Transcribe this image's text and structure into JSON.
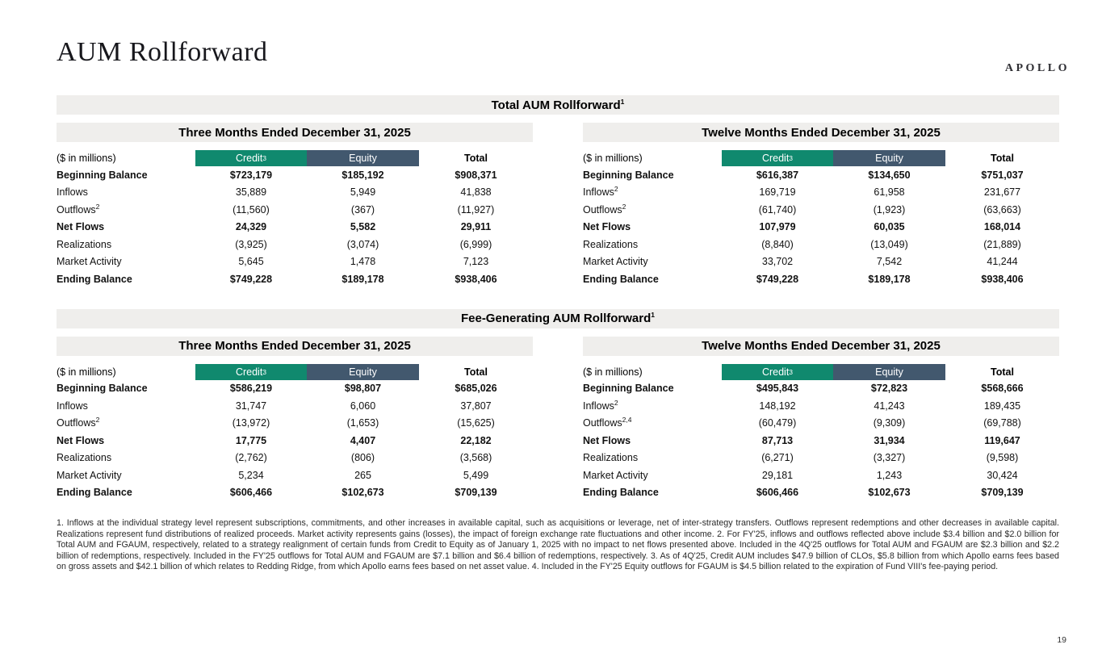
{
  "brand": {
    "logo": "APOLLO"
  },
  "page": {
    "title": "AUM Rollforward",
    "number": "19"
  },
  "colors": {
    "credit_bg": "#10896E",
    "equity_bg": "#42586E",
    "bar_bg": "#EFEEEC",
    "header_text": "#FFFFFF"
  },
  "sections": [
    {
      "title": "Total AUM Rollforward",
      "title_sup": "1",
      "tables": [
        {
          "period": "Three Months Ended December 31, 2025",
          "unit_label": "($ in millions)",
          "columns": [
            {
              "label": "Credit",
              "sup": "3",
              "style": "credit"
            },
            {
              "label": "Equity",
              "sup": "",
              "style": "equity"
            },
            {
              "label": "Total",
              "sup": "",
              "style": "total"
            }
          ],
          "rows": [
            {
              "label": "Beginning Balance",
              "sup": "",
              "bold": true,
              "values": [
                "$723,179",
                "$185,192",
                "$908,371"
              ]
            },
            {
              "label": "Inflows",
              "sup": "",
              "bold": false,
              "values": [
                "35,889",
                "5,949",
                "41,838"
              ]
            },
            {
              "label": "Outflows",
              "sup": "2",
              "bold": false,
              "values": [
                "(11,560)",
                "(367)",
                "(11,927)"
              ]
            },
            {
              "label": "Net Flows",
              "sup": "",
              "bold": true,
              "values": [
                "24,329",
                "5,582",
                "29,911"
              ]
            },
            {
              "label": "Realizations",
              "sup": "",
              "bold": false,
              "values": [
                "(3,925)",
                "(3,074)",
                "(6,999)"
              ]
            },
            {
              "label": "Market Activity",
              "sup": "",
              "bold": false,
              "values": [
                "5,645",
                "1,478",
                "7,123"
              ]
            },
            {
              "label": "Ending Balance",
              "sup": "",
              "bold": true,
              "values": [
                "$749,228",
                "$189,178",
                "$938,406"
              ]
            }
          ]
        },
        {
          "period": "Twelve Months Ended December 31, 2025",
          "unit_label": "($ in millions)",
          "columns": [
            {
              "label": "Credit",
              "sup": "3",
              "style": "credit"
            },
            {
              "label": "Equity",
              "sup": "",
              "style": "equity"
            },
            {
              "label": "Total",
              "sup": "",
              "style": "total"
            }
          ],
          "rows": [
            {
              "label": "Beginning Balance",
              "sup": "",
              "bold": true,
              "values": [
                "$616,387",
                "$134,650",
                "$751,037"
              ]
            },
            {
              "label": "Inflows",
              "sup": "2",
              "bold": false,
              "values": [
                "169,719",
                "61,958",
                "231,677"
              ]
            },
            {
              "label": "Outflows",
              "sup": "2",
              "bold": false,
              "values": [
                "(61,740)",
                "(1,923)",
                "(63,663)"
              ]
            },
            {
              "label": "Net Flows",
              "sup": "",
              "bold": true,
              "values": [
                "107,979",
                "60,035",
                "168,014"
              ]
            },
            {
              "label": "Realizations",
              "sup": "",
              "bold": false,
              "values": [
                "(8,840)",
                "(13,049)",
                "(21,889)"
              ]
            },
            {
              "label": "Market Activity",
              "sup": "",
              "bold": false,
              "values": [
                "33,702",
                "7,542",
                "41,244"
              ]
            },
            {
              "label": "Ending Balance",
              "sup": "",
              "bold": true,
              "values": [
                "$749,228",
                "$189,178",
                "$938,406"
              ]
            }
          ]
        }
      ]
    },
    {
      "title": "Fee-Generating AUM Rollforward",
      "title_sup": "1",
      "tables": [
        {
          "period": "Three Months Ended December 31, 2025",
          "unit_label": "($ in millions)",
          "columns": [
            {
              "label": "Credit",
              "sup": "3",
              "style": "credit"
            },
            {
              "label": "Equity",
              "sup": "",
              "style": "equity"
            },
            {
              "label": "Total",
              "sup": "",
              "style": "total"
            }
          ],
          "rows": [
            {
              "label": "Beginning Balance",
              "sup": "",
              "bold": true,
              "values": [
                "$586,219",
                "$98,807",
                "$685,026"
              ]
            },
            {
              "label": "Inflows",
              "sup": "",
              "bold": false,
              "values": [
                "31,747",
                "6,060",
                "37,807"
              ]
            },
            {
              "label": "Outflows",
              "sup": "2",
              "bold": false,
              "values": [
                "(13,972)",
                "(1,653)",
                "(15,625)"
              ]
            },
            {
              "label": "Net Flows",
              "sup": "",
              "bold": true,
              "values": [
                "17,775",
                "4,407",
                "22,182"
              ]
            },
            {
              "label": "Realizations",
              "sup": "",
              "bold": false,
              "values": [
                "(2,762)",
                "(806)",
                "(3,568)"
              ]
            },
            {
              "label": "Market Activity",
              "sup": "",
              "bold": false,
              "values": [
                "5,234",
                "265",
                "5,499"
              ]
            },
            {
              "label": "Ending Balance",
              "sup": "",
              "bold": true,
              "values": [
                "$606,466",
                "$102,673",
                "$709,139"
              ]
            }
          ]
        },
        {
          "period": "Twelve Months Ended December 31, 2025",
          "unit_label": "($ in millions)",
          "columns": [
            {
              "label": "Credit",
              "sup": "3",
              "style": "credit"
            },
            {
              "label": "Equity",
              "sup": "",
              "style": "equity"
            },
            {
              "label": "Total",
              "sup": "",
              "style": "total"
            }
          ],
          "rows": [
            {
              "label": "Beginning Balance",
              "sup": "",
              "bold": true,
              "values": [
                "$495,843",
                "$72,823",
                "$568,666"
              ]
            },
            {
              "label": "Inflows",
              "sup": "2",
              "bold": false,
              "values": [
                "148,192",
                "41,243",
                "189,435"
              ]
            },
            {
              "label": "Outflows",
              "sup": "2,4",
              "bold": false,
              "values": [
                "(60,479)",
                "(9,309)",
                "(69,788)"
              ]
            },
            {
              "label": "Net Flows",
              "sup": "",
              "bold": true,
              "values": [
                "87,713",
                "31,934",
                "119,647"
              ]
            },
            {
              "label": "Realizations",
              "sup": "",
              "bold": false,
              "values": [
                "(6,271)",
                "(3,327)",
                "(9,598)"
              ]
            },
            {
              "label": "Market Activity",
              "sup": "",
              "bold": false,
              "values": [
                "29,181",
                "1,243",
                "30,424"
              ]
            },
            {
              "label": "Ending Balance",
              "sup": "",
              "bold": true,
              "values": [
                "$606,466",
                "$102,673",
                "$709,139"
              ]
            }
          ]
        }
      ]
    }
  ],
  "footnotes": "1. Inflows at the individual strategy level represent subscriptions, commitments, and other increases in available capital, such as acquisitions or leverage, net of inter-strategy transfers. Outflows represent redemptions and other decreases in available capital. Realizations represent fund distributions of realized proceeds. Market activity represents gains (losses), the impact of foreign exchange rate fluctuations and other income. 2. For FY'25, inflows and outflows reflected above include $3.4 billion and $2.0 billion for Total AUM and FGAUM, respectively, related to a strategy realignment of certain funds from Credit to Equity as of January 1, 2025 with no impact to net flows presented above. Included in the 4Q'25 outflows for Total AUM and FGAUM are $2.3 billion and $2.2 billion of redemptions, respectively. Included in the FY'25 outflows for Total AUM and FGAUM are $7.1 billion and $6.4 billion of redemptions, respectively. 3. As of 4Q'25, Credit AUM includes $47.9 billion of CLOs, $5.8 billion from which Apollo earns fees based on gross assets and $42.1 billion of which relates to Redding Ridge, from which Apollo earns fees based on net asset value. 4. Included in the FY'25 Equity outflows for FGAUM is $4.5 billion related to the expiration of Fund VIII's fee-paying period."
}
